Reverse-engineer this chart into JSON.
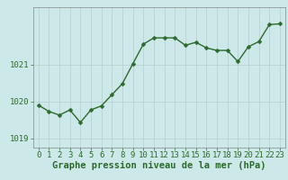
{
  "x": [
    0,
    1,
    2,
    3,
    4,
    5,
    6,
    7,
    8,
    9,
    10,
    11,
    12,
    13,
    14,
    15,
    16,
    17,
    18,
    19,
    20,
    21,
    22,
    23
  ],
  "y": [
    1019.9,
    1019.73,
    1019.63,
    1019.77,
    1019.43,
    1019.77,
    1019.88,
    1020.18,
    1020.48,
    1021.02,
    1021.55,
    1021.72,
    1021.72,
    1021.72,
    1021.52,
    1021.6,
    1021.45,
    1021.38,
    1021.38,
    1021.08,
    1021.48,
    1021.62,
    1022.08,
    1022.1
  ],
  "ylim": [
    1018.75,
    1022.55
  ],
  "yticks": [
    1019,
    1020,
    1021
  ],
  "xlim": [
    -0.5,
    23.5
  ],
  "xticks": [
    0,
    1,
    2,
    3,
    4,
    5,
    6,
    7,
    8,
    9,
    10,
    11,
    12,
    13,
    14,
    15,
    16,
    17,
    18,
    19,
    20,
    21,
    22,
    23
  ],
  "line_color": "#2d6a2d",
  "marker_color": "#2d6a2d",
  "bg_color": "#cce8e8",
  "grid_color": "#b8cdd0",
  "xlabel": "Graphe pression niveau de la mer (hPa)",
  "xlabel_fontsize": 7.5,
  "tick_fontsize": 6.5,
  "line_width": 1.0,
  "marker_size": 2.5
}
